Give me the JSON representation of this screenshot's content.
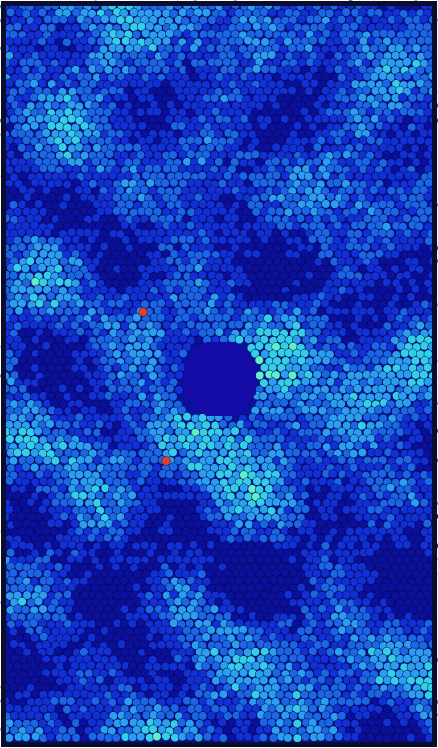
{
  "image": {
    "subject": "granular-particle-packing",
    "colormap": [
      "#0a0f9e",
      "#1130d8",
      "#1a66e6",
      "#2a9ef0",
      "#33cfe8",
      "#5ef0c8",
      "#3ad66a",
      "#e0402a"
    ],
    "background": "#ffffff",
    "border_color": "#0b0d2e",
    "hole_color": "#150ca8",
    "hole_shape": "octagon",
    "hot_particle_color": "#e0402a"
  }
}
